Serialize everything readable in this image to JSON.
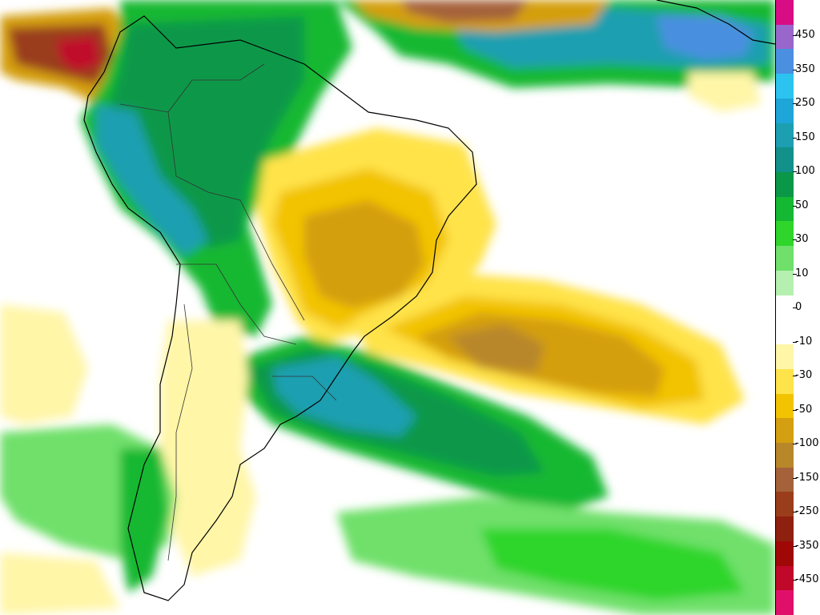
{
  "map": {
    "region": "South America and adjacent South Atlantic and Pacific Oceans",
    "colors": {
      "ocean_background": "#ffffff",
      "coastline": "#000000",
      "borders": "#333333"
    }
  },
  "legend": {
    "bands": [
      {
        "color": "#d80c84"
      },
      {
        "color": "#9966cc"
      },
      {
        "color": "#4a8fe0"
      },
      {
        "color": "#2cc3f0"
      },
      {
        "color": "#1ea6d8"
      },
      {
        "color": "#1c9fb0"
      },
      {
        "color": "#12908a"
      },
      {
        "color": "#0a9848"
      },
      {
        "color": "#14b832"
      },
      {
        "color": "#2fd52a"
      },
      {
        "color": "#6fe06a"
      },
      {
        "color": "#b5f0b0"
      },
      {
        "color": "#ffffff"
      },
      {
        "color": "#ffffff"
      },
      {
        "color": "#fff6a8"
      },
      {
        "color": "#ffe34a"
      },
      {
        "color": "#f2c300"
      },
      {
        "color": "#d49f10"
      },
      {
        "color": "#b8872a"
      },
      {
        "color": "#a5623a"
      },
      {
        "color": "#9a3d1a"
      },
      {
        "color": "#8e2010"
      },
      {
        "color": "#a00808"
      },
      {
        "color": "#c0082a"
      },
      {
        "color": "#e0106a"
      }
    ],
    "labels": [
      "450",
      "350",
      "250",
      "150",
      "100",
      "50",
      "30",
      "10",
      "0",
      "-10",
      "-30",
      "-50",
      "-100",
      "-150",
      "-250",
      "-350",
      "-450"
    ]
  }
}
